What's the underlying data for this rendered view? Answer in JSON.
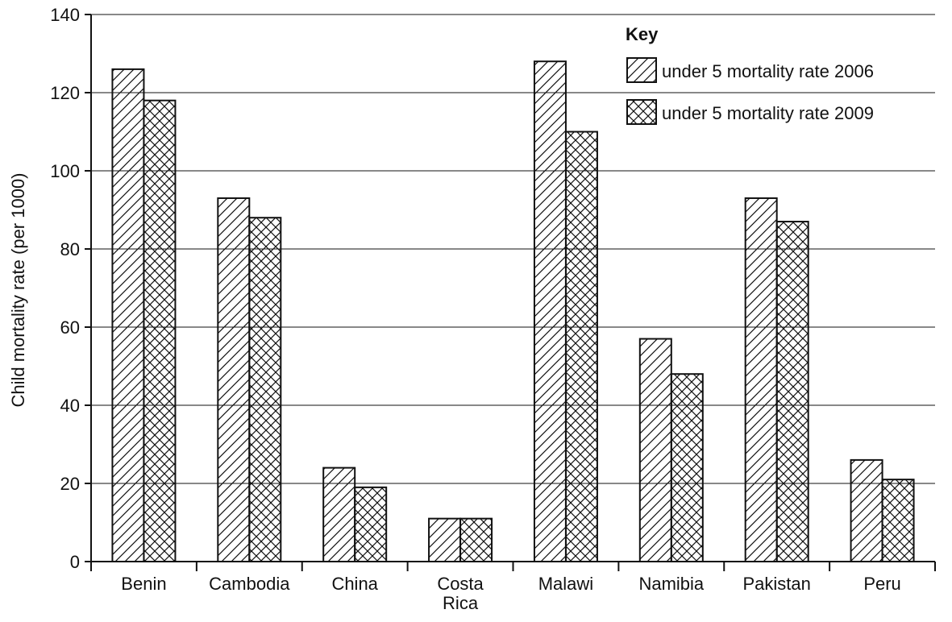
{
  "chart_data": {
    "type": "bar",
    "title": "",
    "xlabel": "",
    "ylabel": "Child mortality rate (per 1000)",
    "ylim": [
      0,
      140
    ],
    "yticks": [
      0,
      20,
      40,
      60,
      80,
      100,
      120,
      140
    ],
    "grid": true,
    "legend_position": "top-right",
    "legend_title": "Key",
    "categories": [
      [
        "Benin"
      ],
      [
        "Cambodia"
      ],
      [
        "China"
      ],
      [
        "Costa",
        "Rica"
      ],
      [
        "Malawi"
      ],
      [
        "Namibia"
      ],
      [
        "Pakistan"
      ],
      [
        "Peru"
      ]
    ],
    "series": [
      {
        "name": "under 5 mortality rate 2006",
        "pattern": "diagonal-hatch",
        "values": [
          126,
          93,
          24,
          11,
          128,
          57,
          93,
          26
        ]
      },
      {
        "name": "under 5 mortality rate 2009",
        "pattern": "cross-hatch",
        "values": [
          118,
          88,
          19,
          11,
          110,
          48,
          87,
          21
        ]
      }
    ]
  }
}
